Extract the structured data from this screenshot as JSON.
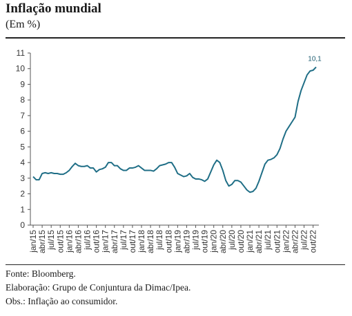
{
  "header": {
    "title": "Inflação mundial",
    "subtitle": "(Em %)"
  },
  "footer": {
    "source": "Fonte: Bloomberg.",
    "elaboration": "Elaboração: Grupo de Conjuntura da Dimac/Ipea.",
    "obs": "Obs.: Inflação ao consumidor."
  },
  "colors": {
    "line": "#1f6e86",
    "axis": "#555555",
    "label": "#1a5a6e"
  },
  "chart_data": {
    "type": "line",
    "ylim": [
      0,
      11
    ],
    "yticks": [
      0,
      1,
      2,
      3,
      4,
      5,
      6,
      7,
      8,
      9,
      10,
      11
    ],
    "x_tick_labels": [
      "jan/15",
      "abr/15",
      "jul/15",
      "out/15",
      "jan/16",
      "abr/16",
      "jul/16",
      "out/16",
      "jan/17",
      "abr/17",
      "jul/17",
      "out/17",
      "jan/18",
      "abr/18",
      "jul/18",
      "out/18",
      "jan/19",
      "abr/19",
      "jul/19",
      "out/19",
      "jan/20",
      "abr/20",
      "jul/20",
      "out/20",
      "jan/21",
      "abr/21",
      "jul/21",
      "out/21",
      "jan/22",
      "abr/22",
      "jul/22",
      "out/22"
    ],
    "annotations": [
      {
        "text": "10,1",
        "point_index": 94
      }
    ],
    "series": [
      {
        "values": [
          3.1,
          2.9,
          2.9,
          3.3,
          3.35,
          3.3,
          3.35,
          3.3,
          3.3,
          3.25,
          3.25,
          3.35,
          3.5,
          3.75,
          3.95,
          3.8,
          3.75,
          3.75,
          3.8,
          3.65,
          3.65,
          3.4,
          3.55,
          3.6,
          3.7,
          4.0,
          4.0,
          3.8,
          3.8,
          3.6,
          3.5,
          3.5,
          3.65,
          3.65,
          3.7,
          3.8,
          3.65,
          3.5,
          3.5,
          3.5,
          3.45,
          3.6,
          3.8,
          3.85,
          3.9,
          4.0,
          4.0,
          3.7,
          3.3,
          3.2,
          3.1,
          3.15,
          3.3,
          3.05,
          2.95,
          2.95,
          2.9,
          2.8,
          2.95,
          3.4,
          3.85,
          4.15,
          4.0,
          3.5,
          2.85,
          2.5,
          2.6,
          2.85,
          2.85,
          2.75,
          2.5,
          2.25,
          2.1,
          2.15,
          2.35,
          2.8,
          3.35,
          3.9,
          4.15,
          4.2,
          4.3,
          4.5,
          4.9,
          5.5,
          6.0,
          6.3,
          6.6,
          6.9,
          7.9,
          8.6,
          9.1,
          9.6,
          9.85,
          9.9,
          10.1
        ]
      }
    ]
  }
}
